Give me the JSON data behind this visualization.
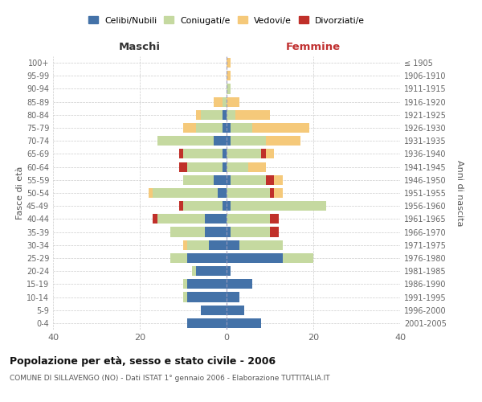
{
  "age_groups": [
    "100+",
    "95-99",
    "90-94",
    "85-89",
    "80-84",
    "75-79",
    "70-74",
    "65-69",
    "60-64",
    "55-59",
    "50-54",
    "45-49",
    "40-44",
    "35-39",
    "30-34",
    "25-29",
    "20-24",
    "15-19",
    "10-14",
    "5-9",
    "0-4"
  ],
  "birth_years": [
    "≤ 1905",
    "1906-1910",
    "1911-1915",
    "1916-1920",
    "1921-1925",
    "1926-1930",
    "1931-1935",
    "1936-1940",
    "1941-1945",
    "1946-1950",
    "1951-1955",
    "1956-1960",
    "1961-1965",
    "1966-1970",
    "1971-1975",
    "1976-1980",
    "1981-1985",
    "1986-1990",
    "1991-1995",
    "1996-2000",
    "2001-2005"
  ],
  "maschi_celibi": [
    0,
    0,
    0,
    0,
    1,
    1,
    3,
    1,
    1,
    3,
    2,
    1,
    5,
    5,
    4,
    9,
    7,
    9,
    9,
    6,
    9
  ],
  "maschi_coniugati": [
    0,
    0,
    0,
    1,
    5,
    6,
    13,
    9,
    8,
    7,
    15,
    9,
    11,
    8,
    5,
    4,
    1,
    1,
    1,
    0,
    0
  ],
  "maschi_vedovi": [
    0,
    0,
    0,
    2,
    1,
    3,
    0,
    0,
    0,
    0,
    1,
    0,
    0,
    0,
    1,
    0,
    0,
    0,
    0,
    0,
    0
  ],
  "maschi_divorziati": [
    0,
    0,
    0,
    0,
    0,
    0,
    0,
    1,
    2,
    0,
    0,
    1,
    1,
    0,
    0,
    0,
    0,
    0,
    0,
    0,
    0
  ],
  "femmine_nubili": [
    0,
    0,
    0,
    0,
    0,
    1,
    1,
    0,
    0,
    1,
    0,
    1,
    0,
    1,
    3,
    13,
    1,
    6,
    3,
    4,
    8
  ],
  "femmine_coniugate": [
    0,
    0,
    1,
    0,
    2,
    5,
    8,
    8,
    5,
    8,
    10,
    22,
    10,
    9,
    10,
    7,
    0,
    0,
    0,
    0,
    0
  ],
  "femmine_vedove": [
    1,
    1,
    0,
    3,
    8,
    13,
    8,
    2,
    4,
    2,
    2,
    0,
    0,
    0,
    0,
    0,
    0,
    0,
    0,
    0,
    0
  ],
  "femmine_divorziate": [
    0,
    0,
    0,
    0,
    0,
    0,
    0,
    1,
    0,
    2,
    1,
    0,
    2,
    2,
    0,
    0,
    0,
    0,
    0,
    0,
    0
  ],
  "color_celibi": "#4472a8",
  "color_coniugati": "#c5d9a0",
  "color_vedovi": "#f5c97a",
  "color_divorziati": "#c0302a",
  "title": "Popolazione per età, sesso e stato civile - 2006",
  "subtitle": "COMUNE DI SILLAVENGO (NO) - Dati ISTAT 1° gennaio 2006 - Elaborazione TUTTITALIA.IT",
  "ylabel_left": "Fasce di età",
  "ylabel_right": "Anni di nascita",
  "label_maschi": "Maschi",
  "label_femmine": "Femmine",
  "legend_labels": [
    "Celibi/Nubili",
    "Coniugati/e",
    "Vedovi/e",
    "Divorziati/e"
  ],
  "xlim": 40,
  "bar_height": 0.75
}
